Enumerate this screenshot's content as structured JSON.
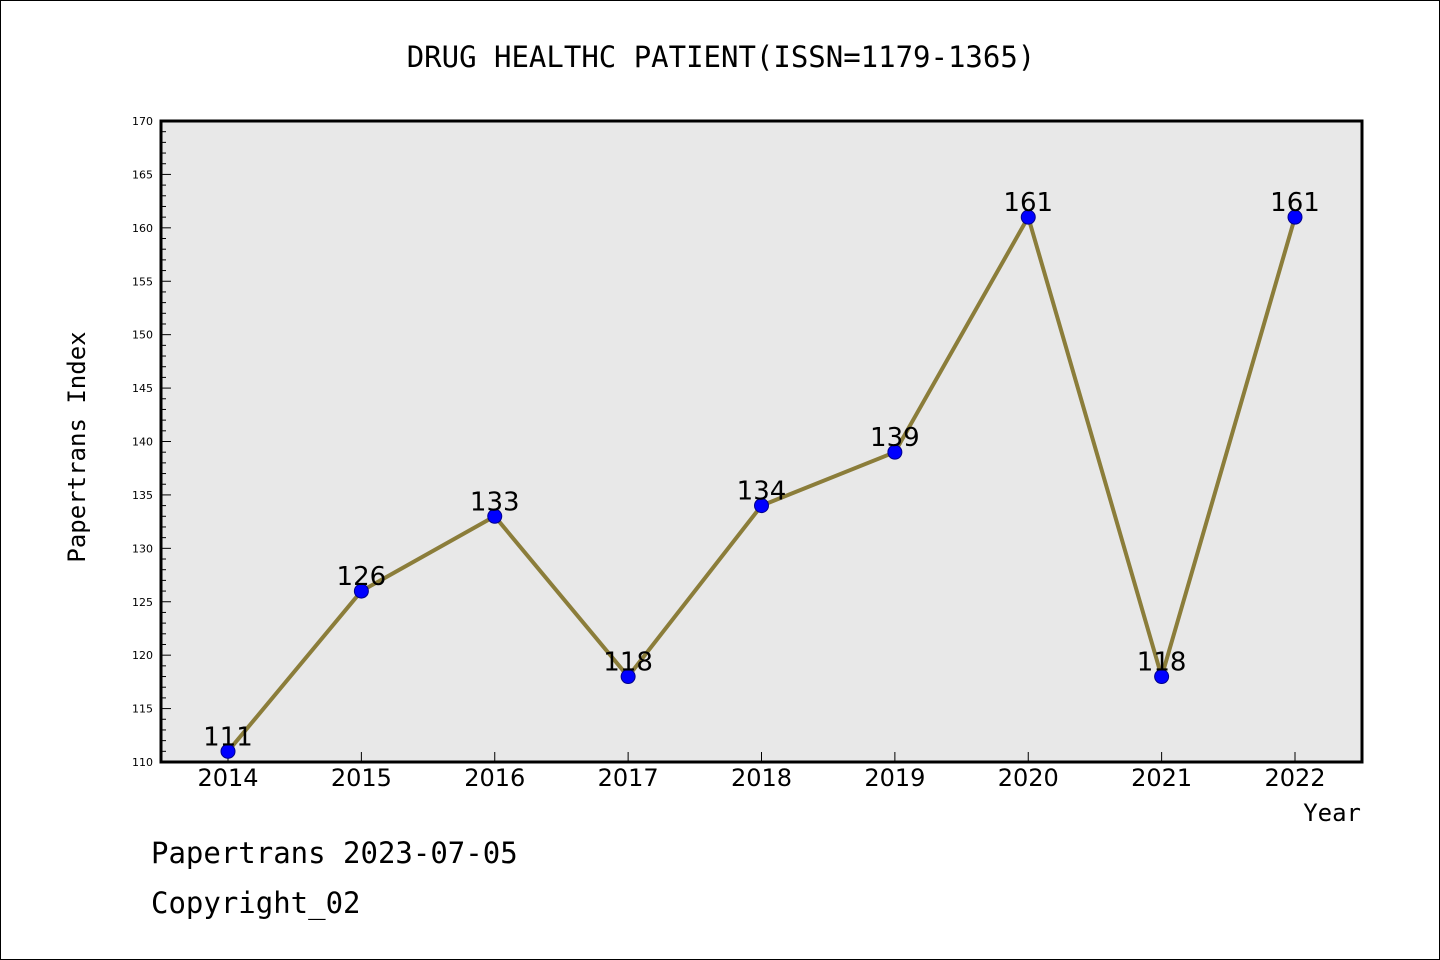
{
  "chart_data": {
    "type": "line",
    "title": "DRUG HEALTHC PATIENT(ISSN=1179-1365)",
    "xlabel": "Year",
    "ylabel": "Papertrans Index",
    "categories": [
      "2014",
      "2015",
      "2016",
      "2017",
      "2018",
      "2019",
      "2020",
      "2021",
      "2022"
    ],
    "values": [
      111,
      126,
      133,
      118,
      134,
      139,
      161,
      118,
      161
    ],
    "data_labels": [
      "111",
      "126",
      "133",
      "118",
      "134",
      "139",
      "161",
      "118",
      "161"
    ],
    "ylim": [
      110,
      170
    ],
    "yticks": [
      110,
      115,
      120,
      125,
      130,
      135,
      140,
      145,
      150,
      155,
      160,
      165,
      170
    ],
    "ytick_labels": [
      "110",
      "115",
      "120",
      "125",
      "130",
      "135",
      "140",
      "145",
      "150",
      "155",
      "160",
      "165",
      "170"
    ],
    "grid": false,
    "colors": {
      "line": "#8b7d3a",
      "marker": "#0000ff",
      "plot_bg": "#e8e8e8"
    }
  },
  "footer": {
    "line1": "Papertrans 2023-07-05",
    "line2": "Copyright_02"
  }
}
